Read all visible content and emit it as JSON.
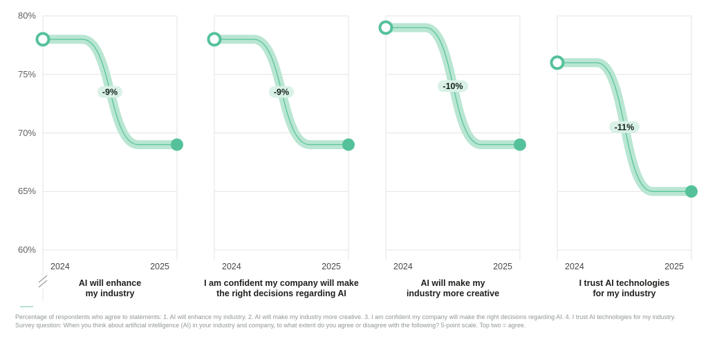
{
  "chart_data": {
    "type": "line",
    "variant": "slope-step-small-multiples",
    "x": [
      "2024",
      "2025"
    ],
    "y_axis": {
      "min": 60,
      "max": 80,
      "step": 5,
      "tick_labels": [
        "80%",
        "75%",
        "70%",
        "65%",
        "60%"
      ],
      "unit": "percent"
    },
    "grid": true,
    "legend_position": "none",
    "axis_break_bottom_left": true,
    "series": [
      {
        "title_lines": [
          "AI will enhance",
          "my industry"
        ],
        "values": [
          78,
          69
        ],
        "change_label": "-9%"
      },
      {
        "title_lines": [
          "I am confident my company will make",
          "the right decisions regarding AI"
        ],
        "values": [
          78,
          69
        ],
        "change_label": "-9%"
      },
      {
        "title_lines": [
          "AI will make my",
          "industry more creative"
        ],
        "values": [
          79,
          69
        ],
        "change_label": "-10%"
      },
      {
        "title_lines": [
          "I trust AI technologies",
          "for my industry"
        ],
        "values": [
          76,
          65
        ],
        "change_label": "-11%"
      }
    ],
    "colors": {
      "band": "#b9e6d2",
      "center_line": "#5fc5a0",
      "marker": "#55c19b",
      "pill_bg": "#d9f1e6",
      "pill_text": "#122019",
      "grid": "#e3e3e3",
      "y_label": "#5d625e",
      "x_label": "#454946",
      "title": "#1e1e1c",
      "footnote": "#909795",
      "axis_break": "#9a9a9a"
    }
  },
  "footnote": {
    "line1": "Percentage of respondents who agree to statements: 1. AI will enhance my industry. 2. AI will make my industry more creative. 3. I am confident my company will make the right decisions regarding AI. 4. I trust AI technologies for my industry.",
    "line2": "Survey question: When you think about artificial intelligence (AI) in your industry and company, to what extent do you agree or disagree with the following? 5-point scale. Top two = agree."
  }
}
